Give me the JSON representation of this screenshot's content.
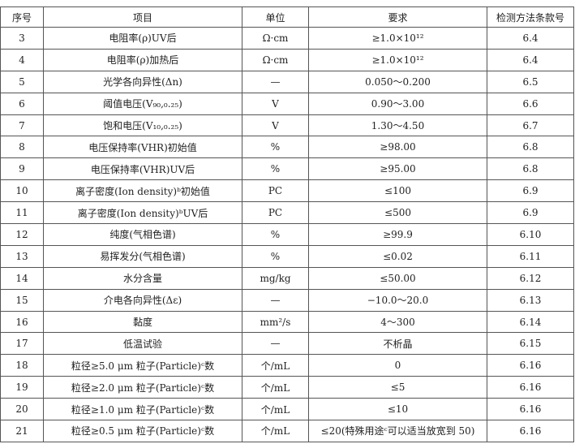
{
  "table": {
    "header": [
      "序号",
      "项目",
      "单位",
      "要求",
      "检测方法条款号"
    ],
    "rows": [
      [
        "3",
        "电阻率(ρ)UV后",
        "Ω·cm",
        "≥1.0×10¹²",
        "6.4"
      ],
      [
        "4",
        "电阻率(ρ)加热后",
        "Ω·cm",
        "≥1.0×10¹²",
        "6.4"
      ],
      [
        "5",
        "光学各向异性(Δn)",
        "—",
        "0.050～0.200",
        "6.5"
      ],
      [
        "6",
        "阈值电压(V₉₀,₀.₂₅)",
        "V",
        "0.90～3.00",
        "6.6"
      ],
      [
        "7",
        "饱和电压(V₁₀,₀.₂₅)",
        "V",
        "1.30～4.50",
        "6.7"
      ],
      [
        "8",
        "电压保持率(VHR)初始值",
        "%",
        "≥98.00",
        "6.8"
      ],
      [
        "9",
        "电压保持率(VHR)UV后",
        "%",
        "≥95.00",
        "6.8"
      ],
      [
        "10",
        "离子密度(Ion density)ᵇ初始值",
        "PC",
        "≤100",
        "6.9"
      ],
      [
        "11",
        "离子密度(Ion density)ᵇUV后",
        "PC",
        "≤500",
        "6.9"
      ],
      [
        "12",
        "纯度(气相色谱)",
        "%",
        "≥99.9",
        "6.10"
      ],
      [
        "13",
        "易挥发分(气相色谱)",
        "%",
        "≤0.02",
        "6.11"
      ],
      [
        "14",
        "水分含量",
        "mg/kg",
        "≤50.00",
        "6.12"
      ],
      [
        "15",
        "介电各向异性(Δε)",
        "—",
        "−10.0～20.0",
        "6.13"
      ],
      [
        "16",
        "黏度",
        "mm²/s",
        "4～300",
        "6.14"
      ],
      [
        "17",
        "低温试验",
        "—",
        "不析晶",
        "6.15"
      ],
      [
        "18",
        "粒径≥5.0 μm 粒子(Particle)ᶜ数",
        "个/mL",
        "0",
        "6.16"
      ],
      [
        "19",
        "粒径≥2.0 μm 粒子(Particle)ᶜ数",
        "个/mL",
        "≤5",
        "6.16"
      ],
      [
        "20",
        "粒径≥1.0 μm 粒子(Particle)ᶜ数",
        "个/mL",
        "≤10",
        "6.16"
      ],
      [
        "21",
        "粒径≥0.5 μm 粒子(Particle)ᶜ数",
        "个/mL",
        "≤20(特殊用途ᶜ可以适当放宽到 50)",
        "6.16"
      ]
    ]
  }
}
